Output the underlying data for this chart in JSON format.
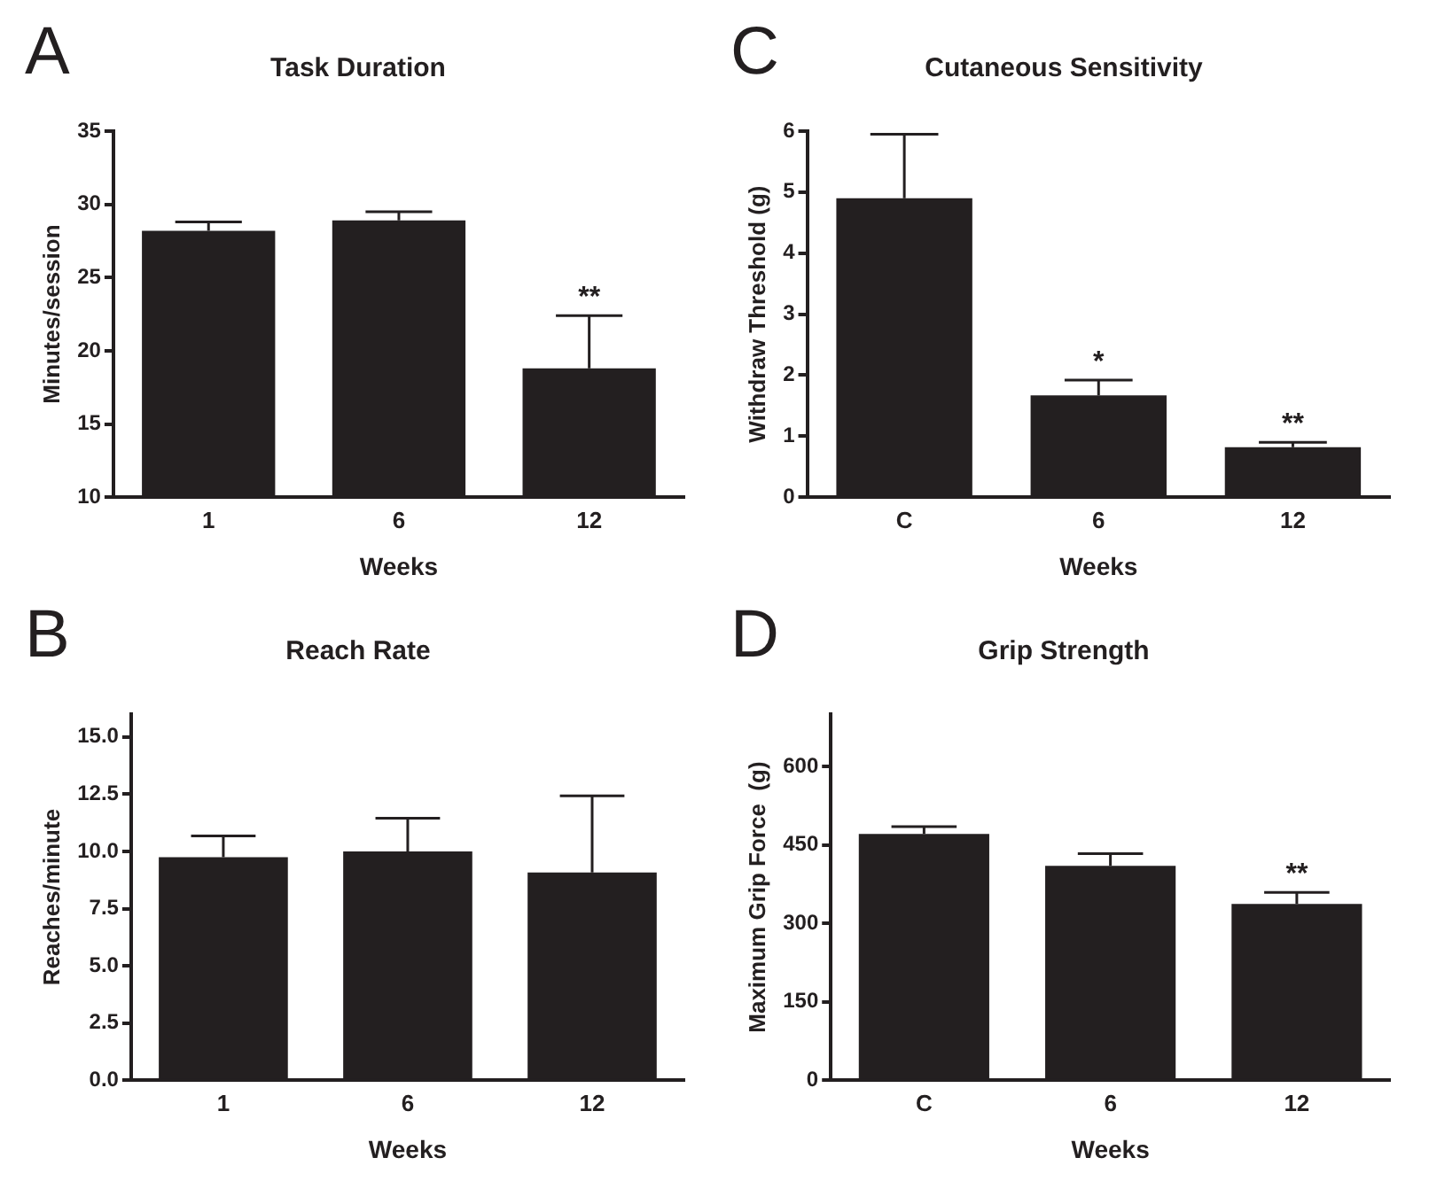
{
  "chart_data": [
    {
      "type": "bar",
      "title": "Task Duration",
      "xlabel": "Weeks",
      "ylabel": "Minutes/session",
      "categories": [
        "1",
        "6",
        "12"
      ],
      "values": [
        28.2,
        28.9,
        18.8
      ],
      "errors": [
        [
          28.2,
          28.8
        ],
        [
          28.9,
          29.5
        ],
        [
          18.8,
          22.4
        ]
      ],
      "color": "#231f20",
      "ylim": [
        10,
        35
      ],
      "yticks": [
        10,
        15,
        20,
        25,
        30,
        35
      ],
      "grid": false,
      "legend": false,
      "annotations": [
        "A",
        {
          "text": "**",
          "x": "12",
          "y": 22.4
        }
      ]
    },
    {
      "type": "bar",
      "title": "Cutaneous Sensitivity",
      "xlabel": "Weeks",
      "ylabel": "Withdraw Threshold (g)",
      "categories": [
        "C",
        "6",
        "12"
      ],
      "values": [
        4.9,
        1.67,
        0.82
      ],
      "errors": [
        [
          4.9,
          5.95
        ],
        [
          1.67,
          1.92
        ],
        [
          0.82,
          0.9
        ]
      ],
      "color": "#231f20",
      "ylim": [
        0,
        6
      ],
      "yticks": [
        0,
        1,
        2,
        3,
        4,
        5,
        6
      ],
      "grid": false,
      "legend": false,
      "annotations": [
        "C",
        {
          "text": "*",
          "x": "6",
          "y": 1.92
        },
        {
          "text": "**",
          "x": "12",
          "y": 0.9
        }
      ]
    },
    {
      "type": "bar",
      "title": "Reach Rate",
      "xlabel": "Weeks",
      "ylabel": "Reaches/minute",
      "categories": [
        "1",
        "6",
        "12"
      ],
      "values": [
        9.75,
        10.0,
        9.08
      ],
      "errors": [
        [
          9.75,
          10.68
        ],
        [
          10.0,
          11.45
        ],
        [
          9.08,
          12.43
        ]
      ],
      "color": "#231f20",
      "ylim": [
        0,
        16
      ],
      "yticks": [
        {
          "value": 0,
          "label": "0.0"
        },
        {
          "value": 2.5,
          "label": "2.5"
        },
        {
          "value": 5,
          "label": "5.0"
        },
        {
          "value": 7.5,
          "label": "7.5"
        },
        {
          "value": 10,
          "label": "10.0"
        },
        {
          "value": 12.5,
          "label": "12.5"
        },
        {
          "value": 15,
          "label": "15.0"
        }
      ],
      "grid": false,
      "legend": false,
      "annotations": [
        "B"
      ]
    },
    {
      "type": "bar",
      "title": "Grip Strength",
      "xlabel": "Weeks",
      "ylabel": "Maximum Grip Force  (g)",
      "categories": [
        "C",
        "6",
        "12"
      ],
      "values": [
        471,
        410,
        337
      ],
      "errors": [
        [
          471,
          485
        ],
        [
          410,
          433
        ],
        [
          337,
          359
        ]
      ],
      "color": "#231f20",
      "ylim": [
        0,
        700
      ],
      "yticks": [
        0,
        150,
        300,
        450,
        600
      ],
      "grid": false,
      "legend": false,
      "annotations": [
        "D",
        {
          "text": "**",
          "x": "12",
          "y": 359
        }
      ]
    }
  ]
}
